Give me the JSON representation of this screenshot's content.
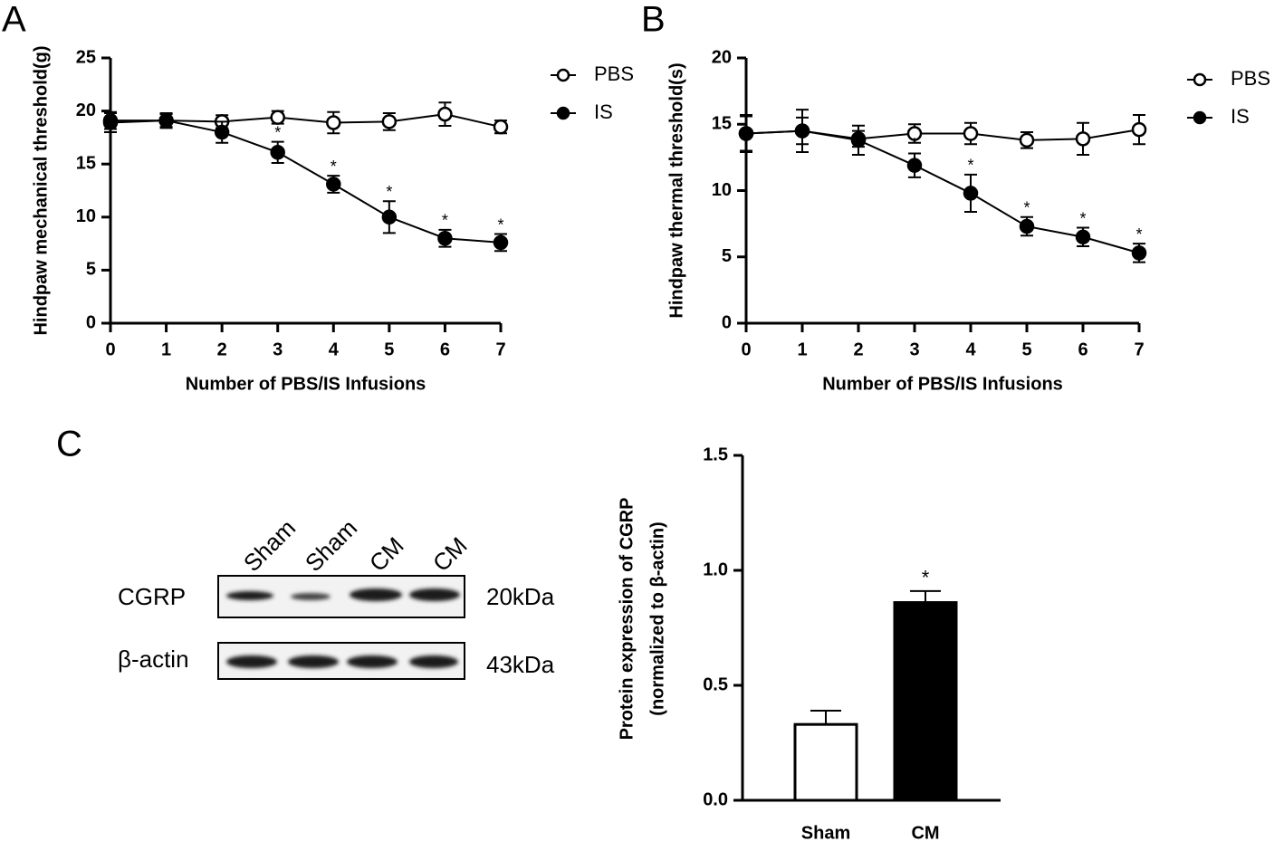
{
  "panel_labels": [
    "A",
    "B",
    "C"
  ],
  "chart_data": [
    {
      "type": "line",
      "xlabel": "Number of PBS/IS Infusions",
      "ylabel": [
        "Hindpaw mechanical threshold(g)"
      ],
      "x": [
        0,
        1,
        2,
        3,
        4,
        5,
        6,
        7
      ],
      "xlim": [
        0,
        7
      ],
      "xticks": [
        0,
        1,
        2,
        3,
        4,
        5,
        6,
        7
      ],
      "ylim": [
        0,
        25
      ],
      "yticks": [
        0,
        5,
        10,
        15,
        20,
        25
      ],
      "legend": "right",
      "series": [
        {
          "name": "PBS",
          "color": "#000000",
          "marker": "open",
          "values": [
            19.1,
            19.1,
            19.0,
            19.4,
            18.9,
            19.0,
            19.7,
            18.5
          ],
          "errors": [
            0.8,
            0.6,
            0.6,
            0.6,
            1.0,
            0.8,
            1.1,
            0.6
          ]
        },
        {
          "name": "IS",
          "color": "#000000",
          "marker": "filled",
          "values": [
            18.9,
            19.1,
            18.0,
            16.1,
            13.1,
            10.0,
            8.0,
            7.6
          ],
          "errors": [
            0.9,
            0.7,
            1.0,
            1.0,
            0.8,
            1.5,
            0.8,
            0.8
          ],
          "annotations": [
            null,
            null,
            null,
            "*",
            "*",
            "*",
            "*",
            "*"
          ]
        }
      ]
    },
    {
      "type": "line",
      "xlabel": "Number of PBS/IS Infusions",
      "ylabel": [
        "Hindpaw thermal threshold(s)"
      ],
      "x": [
        0,
        1,
        2,
        3,
        4,
        5,
        6,
        7
      ],
      "xlim": [
        0,
        7
      ],
      "xticks": [
        0,
        1,
        2,
        3,
        4,
        5,
        6,
        7
      ],
      "ylim": [
        0,
        20
      ],
      "yticks": [
        0,
        5,
        10,
        15,
        20
      ],
      "legend": "right",
      "series": [
        {
          "name": "PBS",
          "color": "#000000",
          "marker": "open",
          "values": [
            14.3,
            14.5,
            13.9,
            14.3,
            14.3,
            13.8,
            13.9,
            14.6
          ],
          "errors": [
            1.3,
            1.0,
            0.6,
            0.7,
            0.8,
            0.6,
            1.2,
            1.1
          ]
        },
        {
          "name": "IS",
          "color": "#000000",
          "marker": "filled",
          "values": [
            14.3,
            14.5,
            13.8,
            11.9,
            9.8,
            7.3,
            6.5,
            5.3
          ],
          "errors": [
            1.4,
            1.6,
            1.1,
            0.9,
            1.4,
            0.7,
            0.7,
            0.7
          ],
          "annotations": [
            null,
            null,
            null,
            "*",
            "*",
            "*",
            "*",
            "*"
          ]
        }
      ]
    },
    {
      "type": "bar",
      "ylabel": [
        "Protein expression of CGRP",
        "(normalized to β-actin)"
      ],
      "categories": [
        "Sham",
        "CM"
      ],
      "values": [
        0.33,
        0.86
      ],
      "errors": [
        0.06,
        0.05
      ],
      "colors": [
        "#ffffff",
        "#000000"
      ],
      "annotations": [
        null,
        "*"
      ],
      "ylim": [
        0,
        1.5
      ],
      "yticks": [
        {
          "value": 0,
          "label": "0.0"
        },
        0.5,
        {
          "value": 1,
          "label": "1.0"
        },
        1.5
      ]
    }
  ],
  "blot": {
    "lanes": [
      "Sham",
      "Sham",
      "CM",
      "CM"
    ],
    "rows": [
      {
        "label": "CGRP",
        "size": "20kDa"
      },
      {
        "label": "β-actin",
        "size": "43kDa"
      }
    ]
  }
}
